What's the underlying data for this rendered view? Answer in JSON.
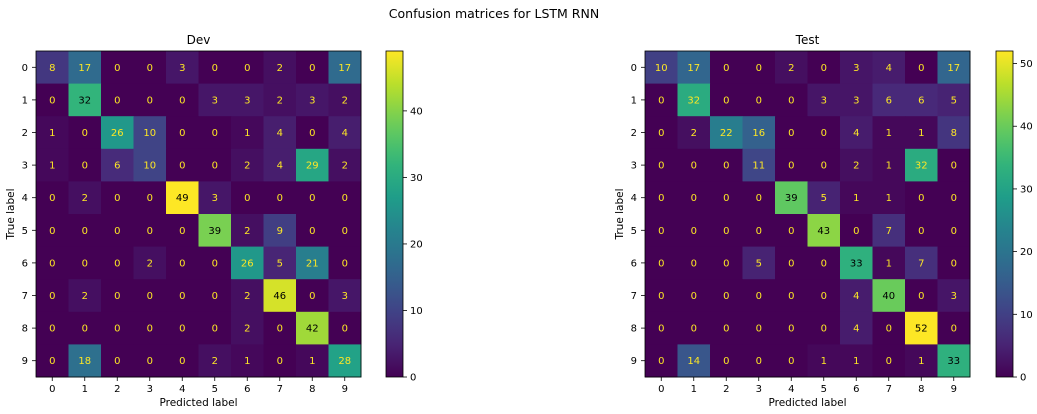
{
  "figure_title": "Confusion matrices for LSTM RNN",
  "chart_data": [
    {
      "type": "heatmap",
      "title": "Dev",
      "xlabel": "Predicted label",
      "ylabel": "True label",
      "x_tick_labels": [
        "0",
        "1",
        "2",
        "3",
        "4",
        "5",
        "6",
        "7",
        "8",
        "9"
      ],
      "y_tick_labels": [
        "0",
        "1",
        "2",
        "3",
        "4",
        "5",
        "6",
        "7",
        "8",
        "9"
      ],
      "colormap": "viridis",
      "color_range": [
        0,
        49
      ],
      "colorbar_ticks": [
        0,
        10,
        20,
        30,
        40
      ],
      "colorbar_tick_labels": [
        "0",
        "10",
        "20",
        "30",
        "40"
      ],
      "matrix": [
        [
          8,
          17,
          0,
          0,
          3,
          0,
          0,
          2,
          0,
          17
        ],
        [
          0,
          32,
          0,
          0,
          0,
          3,
          3,
          2,
          3,
          2
        ],
        [
          1,
          0,
          26,
          10,
          0,
          0,
          1,
          4,
          0,
          4
        ],
        [
          1,
          0,
          6,
          10,
          0,
          0,
          2,
          4,
          29,
          2
        ],
        [
          0,
          2,
          0,
          0,
          49,
          3,
          0,
          0,
          0,
          0
        ],
        [
          0,
          0,
          0,
          0,
          0,
          39,
          2,
          9,
          0,
          0
        ],
        [
          0,
          0,
          0,
          2,
          0,
          0,
          26,
          5,
          21,
          0
        ],
        [
          0,
          2,
          0,
          0,
          0,
          0,
          2,
          46,
          0,
          3
        ],
        [
          0,
          0,
          0,
          0,
          0,
          0,
          2,
          0,
          42,
          0
        ],
        [
          0,
          18,
          0,
          0,
          0,
          2,
          1,
          0,
          1,
          28
        ]
      ]
    },
    {
      "type": "heatmap",
      "title": "Test",
      "xlabel": "Predicted label",
      "ylabel": "True label",
      "x_tick_labels": [
        "0",
        "1",
        "2",
        "3",
        "4",
        "5",
        "6",
        "7",
        "8",
        "9"
      ],
      "y_tick_labels": [
        "0",
        "1",
        "2",
        "3",
        "4",
        "5",
        "6",
        "7",
        "8",
        "9"
      ],
      "colormap": "viridis",
      "color_range": [
        0,
        52
      ],
      "colorbar_ticks": [
        0,
        10,
        20,
        30,
        40,
        50
      ],
      "colorbar_tick_labels": [
        "0",
        "10",
        "20",
        "30",
        "40",
        "50"
      ],
      "matrix": [
        [
          10,
          17,
          0,
          0,
          2,
          0,
          3,
          4,
          0,
          17
        ],
        [
          0,
          32,
          0,
          0,
          0,
          3,
          3,
          6,
          6,
          5
        ],
        [
          0,
          2,
          22,
          16,
          0,
          0,
          4,
          1,
          1,
          8
        ],
        [
          0,
          0,
          0,
          11,
          0,
          0,
          2,
          1,
          32,
          0
        ],
        [
          0,
          0,
          0,
          0,
          39,
          5,
          1,
          1,
          0,
          0
        ],
        [
          0,
          0,
          0,
          0,
          0,
          43,
          0,
          7,
          0,
          0
        ],
        [
          0,
          0,
          0,
          5,
          0,
          0,
          33,
          1,
          7,
          0
        ],
        [
          0,
          0,
          0,
          0,
          0,
          0,
          4,
          40,
          0,
          3
        ],
        [
          0,
          0,
          0,
          0,
          0,
          0,
          4,
          0,
          52,
          0
        ],
        [
          0,
          14,
          0,
          0,
          0,
          1,
          1,
          0,
          1,
          33
        ]
      ]
    }
  ]
}
